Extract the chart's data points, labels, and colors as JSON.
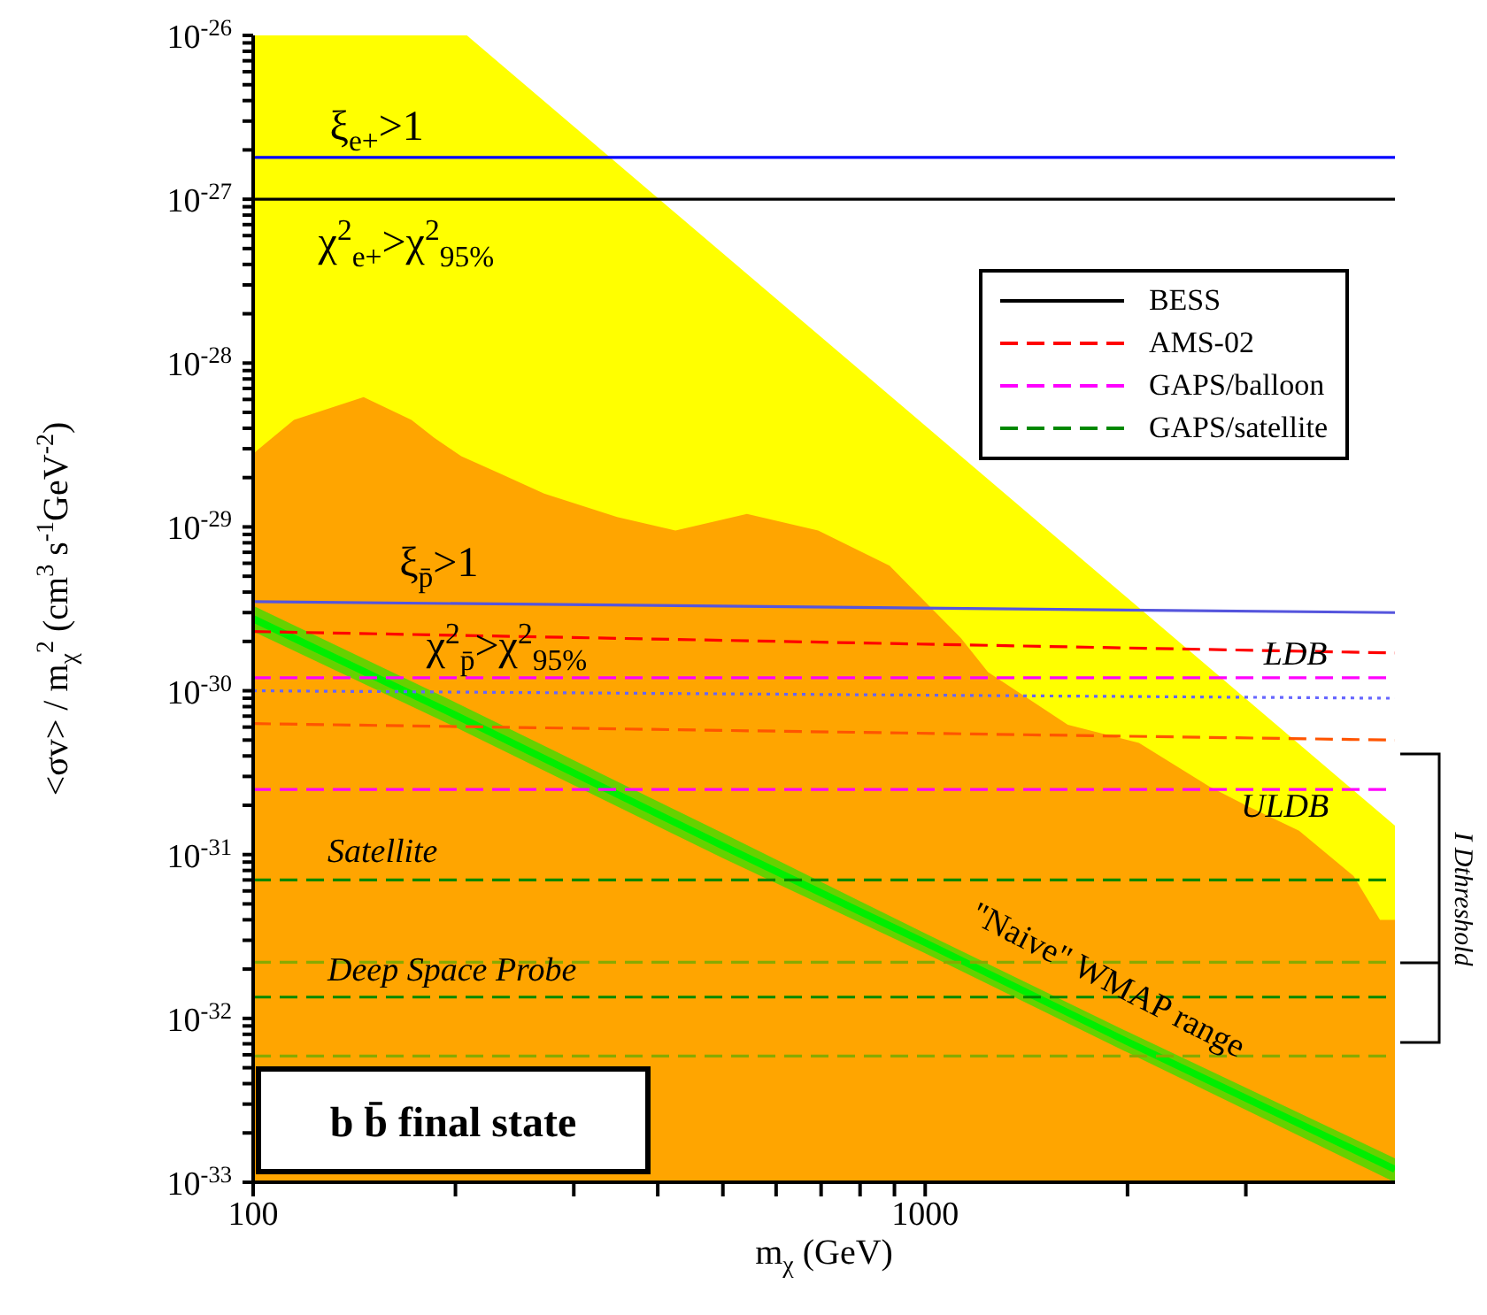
{
  "chart_data": {
    "type": "line",
    "xlabel": "m$_{χ}$ (GeV)",
    "ylabel": "<σv> / m$_{χ}$$^{2}$ (cm$^{3}$ s$^{-1}$GeV$^{-2}$)",
    "log": "xy",
    "legend": "top right",
    "xlim": [
      100,
      5000
    ],
    "ylim": [
      1e-33,
      1e-26
    ],
    "xticks": [
      100,
      {
        "value": 200,
        "label": null
      },
      {
        "value": 300,
        "label": null
      },
      {
        "value": 400,
        "label": null
      },
      {
        "value": 500,
        "label": null
      },
      {
        "value": 600,
        "label": null
      },
      {
        "value": 700,
        "label": null
      },
      {
        "value": 800,
        "label": null
      },
      {
        "value": 900,
        "label": null
      },
      1000,
      {
        "value": 2000,
        "label": null
      },
      {
        "value": 3000,
        "label": null
      }
    ],
    "yticks": [
      {
        "value": 1e-33,
        "label": "10$^{-33}$"
      },
      {
        "value": 2e-33,
        "label": null
      },
      {
        "value": 3e-33,
        "label": null
      },
      {
        "value": 4e-33,
        "label": null
      },
      {
        "value": 5e-33,
        "label": null
      },
      {
        "value": 6e-33,
        "label": null
      },
      {
        "value": 7e-33,
        "label": null
      },
      {
        "value": 8e-33,
        "label": null
      },
      {
        "value": 9e-33,
        "label": null
      },
      {
        "value": 1e-32,
        "label": "10$^{-32}$"
      },
      {
        "value": 2e-32,
        "label": null
      },
      {
        "value": 3e-32,
        "label": null
      },
      {
        "value": 4e-32,
        "label": null
      },
      {
        "value": 5e-32,
        "label": null
      },
      {
        "value": 6e-32,
        "label": null
      },
      {
        "value": 7e-32,
        "label": null
      },
      {
        "value": 8e-32,
        "label": null
      },
      {
        "value": 9e-32,
        "label": null
      },
      {
        "value": 1e-31,
        "label": "10$^{-31}$"
      },
      {
        "value": 2e-31,
        "label": null
      },
      {
        "value": 3e-31,
        "label": null
      },
      {
        "value": 4e-31,
        "label": null
      },
      {
        "value": 5e-31,
        "label": null
      },
      {
        "value": 6e-31,
        "label": null
      },
      {
        "value": 7e-31,
        "label": null
      },
      {
        "value": 8e-31,
        "label": null
      },
      {
        "value": 9e-31,
        "label": null
      },
      {
        "value": 1e-30,
        "label": "10$^{-30}$"
      },
      {
        "value": 2e-30,
        "label": null
      },
      {
        "value": 3e-30,
        "label": null
      },
      {
        "value": 4e-30,
        "label": null
      },
      {
        "value": 5e-30,
        "label": null
      },
      {
        "value": 6e-30,
        "label": null
      },
      {
        "value": 7e-30,
        "label": null
      },
      {
        "value": 8e-30,
        "label": null
      },
      {
        "value": 9e-30,
        "label": null
      },
      {
        "value": 1e-29,
        "label": "10$^{-29}$"
      },
      {
        "value": 2e-29,
        "label": null
      },
      {
        "value": 3e-29,
        "label": null
      },
      {
        "value": 4e-29,
        "label": null
      },
      {
        "value": 5e-29,
        "label": null
      },
      {
        "value": 6e-29,
        "label": null
      },
      {
        "value": 7e-29,
        "label": null
      },
      {
        "value": 8e-29,
        "label": null
      },
      {
        "value": 9e-29,
        "label": null
      },
      {
        "value": 1e-28,
        "label": "10$^{-28}$"
      },
      {
        "value": 2e-28,
        "label": null
      },
      {
        "value": 3e-28,
        "label": null
      },
      {
        "value": 4e-28,
        "label": null
      },
      {
        "value": 5e-28,
        "label": null
      },
      {
        "value": 6e-28,
        "label": null
      },
      {
        "value": 7e-28,
        "label": null
      },
      {
        "value": 8e-28,
        "label": null
      },
      {
        "value": 9e-28,
        "label": null
      },
      {
        "value": 1e-27,
        "label": "10$^{-27}$"
      },
      {
        "value": 2e-27,
        "label": null
      },
      {
        "value": 3e-27,
        "label": null
      },
      {
        "value": 4e-27,
        "label": null
      },
      {
        "value": 5e-27,
        "label": null
      },
      {
        "value": 6e-27,
        "label": null
      },
      {
        "value": 7e-27,
        "label": null
      },
      {
        "value": 8e-27,
        "label": null
      },
      {
        "value": 9e-27,
        "label": null
      },
      {
        "value": 1e-26,
        "label": "10$^{-26}$"
      }
    ],
    "series": [
      {
        "type": "area",
        "color": "#ffff00",
        "x": [
          100,
          208,
          5000
        ],
        "values": [
          1e-26,
          1e-26,
          1.5e-31
        ]
      },
      {
        "type": "area",
        "color": "#ffa500",
        "x": [
          100,
          115,
          146,
          172,
          186,
          204,
          234,
          271,
          348,
          425,
          543,
          693,
          885,
          1130,
          1240,
          1630,
          2080,
          2650,
          3000,
          3600,
          4340,
          4750,
          5000
        ],
        "values": [
          2.8e-29,
          4.5e-29,
          6.2e-29,
          4.5e-29,
          3.5e-29,
          2.7e-29,
          2.1e-29,
          1.6e-29,
          1.15e-29,
          9.5e-30,
          1.2e-29,
          9.5e-30,
          5.8e-30,
          2.1e-30,
          1.3e-30,
          6.2e-31,
          4.8e-31,
          2.6e-31,
          2e-31,
          1.4e-31,
          7.4e-32,
          4e-32,
          4e-32
        ]
      },
      {
        "color": "#00ee00",
        "x": [
          100,
          200,
          500,
          1000,
          2000,
          5000
        ],
        "values": [
          2.75e-30,
          7.1e-31,
          1.13e-31,
          2.9e-32,
          7.2e-33,
          1.2e-33
        ],
        "lower": [
          2.3e-30,
          6e-31,
          9.5e-32,
          2.5e-32,
          6.2e-33,
          1e-33
        ],
        "upper": [
          3.3e-30,
          8.5e-31,
          1.35e-31,
          3.3e-32,
          8.3e-33,
          1.4e-33
        ]
      },
      {
        "color": "#0000ff",
        "line_style": "solid",
        "x": [
          100,
          5000
        ],
        "values": [
          1.8e-27,
          1.8e-27
        ]
      },
      {
        "name": "BESS",
        "color": "#000000",
        "line_style": "solid",
        "x": [
          100,
          5000
        ],
        "values": [
          1e-27,
          1e-27
        ]
      },
      {
        "color": "#5555dd",
        "line_style": "solid",
        "x": [
          100,
          5000
        ],
        "values": [
          3.5e-30,
          3e-30
        ]
      },
      {
        "name": "AMS-02",
        "color": "#ff0000",
        "line_style": "dashed",
        "x": [
          100,
          5000
        ],
        "values": [
          2.3e-30,
          1.7e-30
        ]
      },
      {
        "name": "GAPS/balloon",
        "color": "#ff00ff",
        "line_style": "dashed",
        "x": [
          100,
          5000
        ],
        "values": [
          1.2e-30,
          1.2e-30
        ]
      },
      {
        "color": "#6666ff",
        "line_style": "dotted",
        "x": [
          100,
          5000
        ],
        "values": [
          1e-30,
          9e-31
        ]
      },
      {
        "color": "#ff5500",
        "line_style": "dashed",
        "x": [
          100,
          5000
        ],
        "values": [
          6.3e-31,
          5e-31
        ]
      },
      {
        "color": "#ff00ff",
        "line_style": "dashed",
        "x": [
          100,
          5000
        ],
        "values": [
          2.5e-31,
          2.5e-31
        ]
      },
      {
        "name": "GAPS/satellite",
        "color": "#008800",
        "line_style": "dashed",
        "x": [
          100,
          5000
        ],
        "values": [
          7e-32,
          7e-32
        ]
      },
      {
        "color": "#88aa00",
        "line_style": "dashed",
        "x": [
          100,
          5000
        ],
        "values": [
          2.2e-32,
          2.2e-32
        ]
      },
      {
        "color": "#008800",
        "line_style": "dashed",
        "x": [
          100,
          5000
        ],
        "values": [
          1.35e-32,
          1.35e-32
        ]
      },
      {
        "color": "#88aa00",
        "line_style": "dashed",
        "x": [
          100,
          5000
        ],
        "values": [
          5.9e-33,
          5.9e-33
        ]
      }
    ],
    "annotations": [
      "b b̄ final state",
      "I Dthreshold",
      "ξ$_{e+}$>1",
      "χ$^{2}$$_{e+}$>χ$^{2}$$_{95%}$",
      "ξ$_{p̄}$>1",
      "χ$^{2}$$_{p̄}$>χ$^{2}$$_{95%}$",
      "LDB",
      "ULDB",
      "Satellite",
      "Deep Space Probe",
      "\"Naive\" WMAP range"
    ]
  }
}
